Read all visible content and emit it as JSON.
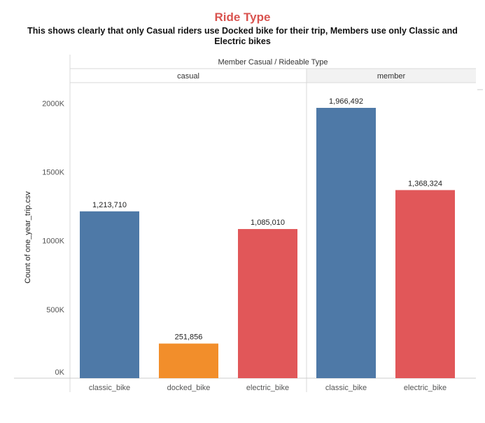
{
  "title": "Ride Type",
  "subtitle": "This shows clearly that only Casual riders use Docked bike for their trip, Members use only Classic and Electric bikes",
  "chart_data": {
    "type": "bar",
    "column_header": "Member Casual / Rideable Type",
    "ylabel": "Count of one_year_trip.csv",
    "ylim": [
      0,
      2150000
    ],
    "y_ticks": [
      {
        "value": 0,
        "label": "0K"
      },
      {
        "value": 500000,
        "label": "500K"
      },
      {
        "value": 1000000,
        "label": "1000K"
      },
      {
        "value": 1500000,
        "label": "1500K"
      },
      {
        "value": 2000000,
        "label": "2000K"
      }
    ],
    "panels": [
      {
        "name": "casual",
        "bars": [
          {
            "category": "classic_bike",
            "value": 1213710,
            "label": "1,213,710",
            "color": "#4e79a7"
          },
          {
            "category": "docked_bike",
            "value": 251856,
            "label": "251,856",
            "color": "#f28e2b"
          },
          {
            "category": "electric_bike",
            "value": 1085010,
            "label": "1,085,010",
            "color": "#e15759"
          }
        ]
      },
      {
        "name": "member",
        "bars": [
          {
            "category": "classic_bike",
            "value": 1966492,
            "label": "1,966,492",
            "color": "#4e79a7"
          },
          {
            "category": "electric_bike",
            "value": 1368324,
            "label": "1,368,324",
            "color": "#e15759"
          }
        ]
      }
    ],
    "grid": false
  }
}
